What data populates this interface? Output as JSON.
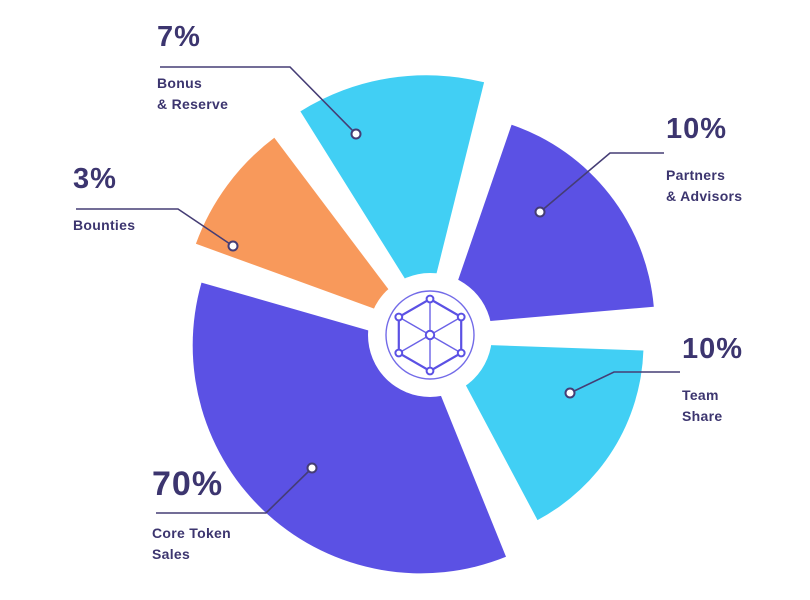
{
  "page": {
    "background": "#ffffff",
    "text_color": "#3C356F"
  },
  "chart_data": {
    "type": "pie",
    "title": "",
    "legend_position": "none",
    "center": [
      430,
      335
    ],
    "hub_radius": 62,
    "accent_purple": "#5B51E4",
    "accent_cyan": "#41CFF4",
    "accent_orange": "#F8995B",
    "line_color": "#453D75",
    "slices": [
      {
        "id": "partners-advisors",
        "label": "Partners & Advisors",
        "label_lines": [
          "Partners",
          "& Advisors"
        ],
        "value": 10,
        "pct_label": "10%",
        "color": "#5B51E4",
        "start": 289,
        "end": 355,
        "radius": 212,
        "explode": 16,
        "marker": [
          540,
          212
        ],
        "line_points": [
          [
            664,
            153
          ],
          [
            610,
            153
          ],
          [
            540,
            212
          ]
        ]
      },
      {
        "id": "team-share",
        "label": "Team Share",
        "label_lines": [
          "Team",
          "Share"
        ],
        "value": 10,
        "pct_label": "10%",
        "color": "#41CFF4",
        "start": 2,
        "end": 62,
        "radius": 200,
        "explode": 16,
        "marker": [
          570,
          393
        ],
        "line_points": [
          [
            680,
            372
          ],
          [
            614,
            372
          ],
          [
            570,
            393
          ]
        ]
      },
      {
        "id": "core-token-sales",
        "label": "Core Token Sales",
        "label_lines": [
          "Core Token",
          "Sales"
        ],
        "value": 70,
        "pct_label": "70%",
        "color": "#5B51E4",
        "start": 68,
        "end": 196,
        "radius": 228,
        "explode": 14,
        "marker": [
          312,
          468
        ],
        "line_points": [
          [
            156,
            513
          ],
          [
            266,
            513
          ],
          [
            312,
            468
          ]
        ]
      },
      {
        "id": "bounties",
        "label": "Bounties",
        "label_lines": [
          "Bounties"
        ],
        "value": 3,
        "pct_label": "3%",
        "color": "#F8995B",
        "start": 200,
        "end": 233,
        "radius": 232,
        "explode": 20,
        "marker": [
          233,
          246
        ],
        "line_points": [
          [
            76,
            209
          ],
          [
            178,
            209
          ],
          [
            233,
            246
          ]
        ]
      },
      {
        "id": "bonus-reserve",
        "label": "Bonus & Reserve",
        "label_lines": [
          "Bonus",
          "& Reserve"
        ],
        "value": 7,
        "pct_label": "7%",
        "color": "#41CFF4",
        "start": 238,
        "end": 284,
        "radius": 238,
        "explode": 22,
        "marker": [
          356,
          134
        ],
        "line_points": [
          [
            160,
            67
          ],
          [
            290,
            67
          ],
          [
            356,
            134
          ]
        ]
      }
    ]
  }
}
